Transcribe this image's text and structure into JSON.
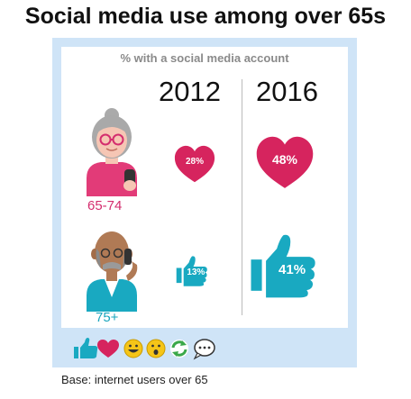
{
  "chart_data": {
    "type": "infographic",
    "title": "Social media use among over 65s",
    "subtitle": "% with a social media account",
    "years": [
      "2012",
      "2016"
    ],
    "groups": [
      {
        "label": "65-74",
        "values": [
          28,
          48
        ],
        "display": [
          "28%",
          "48%"
        ],
        "marker": "heart-icon",
        "color": "#d6245e"
      },
      {
        "label": "75+",
        "values": [
          13,
          41
        ],
        "display": [
          "13%",
          "41%"
        ],
        "marker": "thumbs-up-icon",
        "color": "#19a9c1"
      }
    ],
    "footnote": "Base: internet users over 65"
  },
  "reactions": [
    "thumbs-up-icon",
    "heart-icon",
    "grin-icon",
    "wow-icon",
    "refresh-icon",
    "speech-bubble-icon"
  ]
}
